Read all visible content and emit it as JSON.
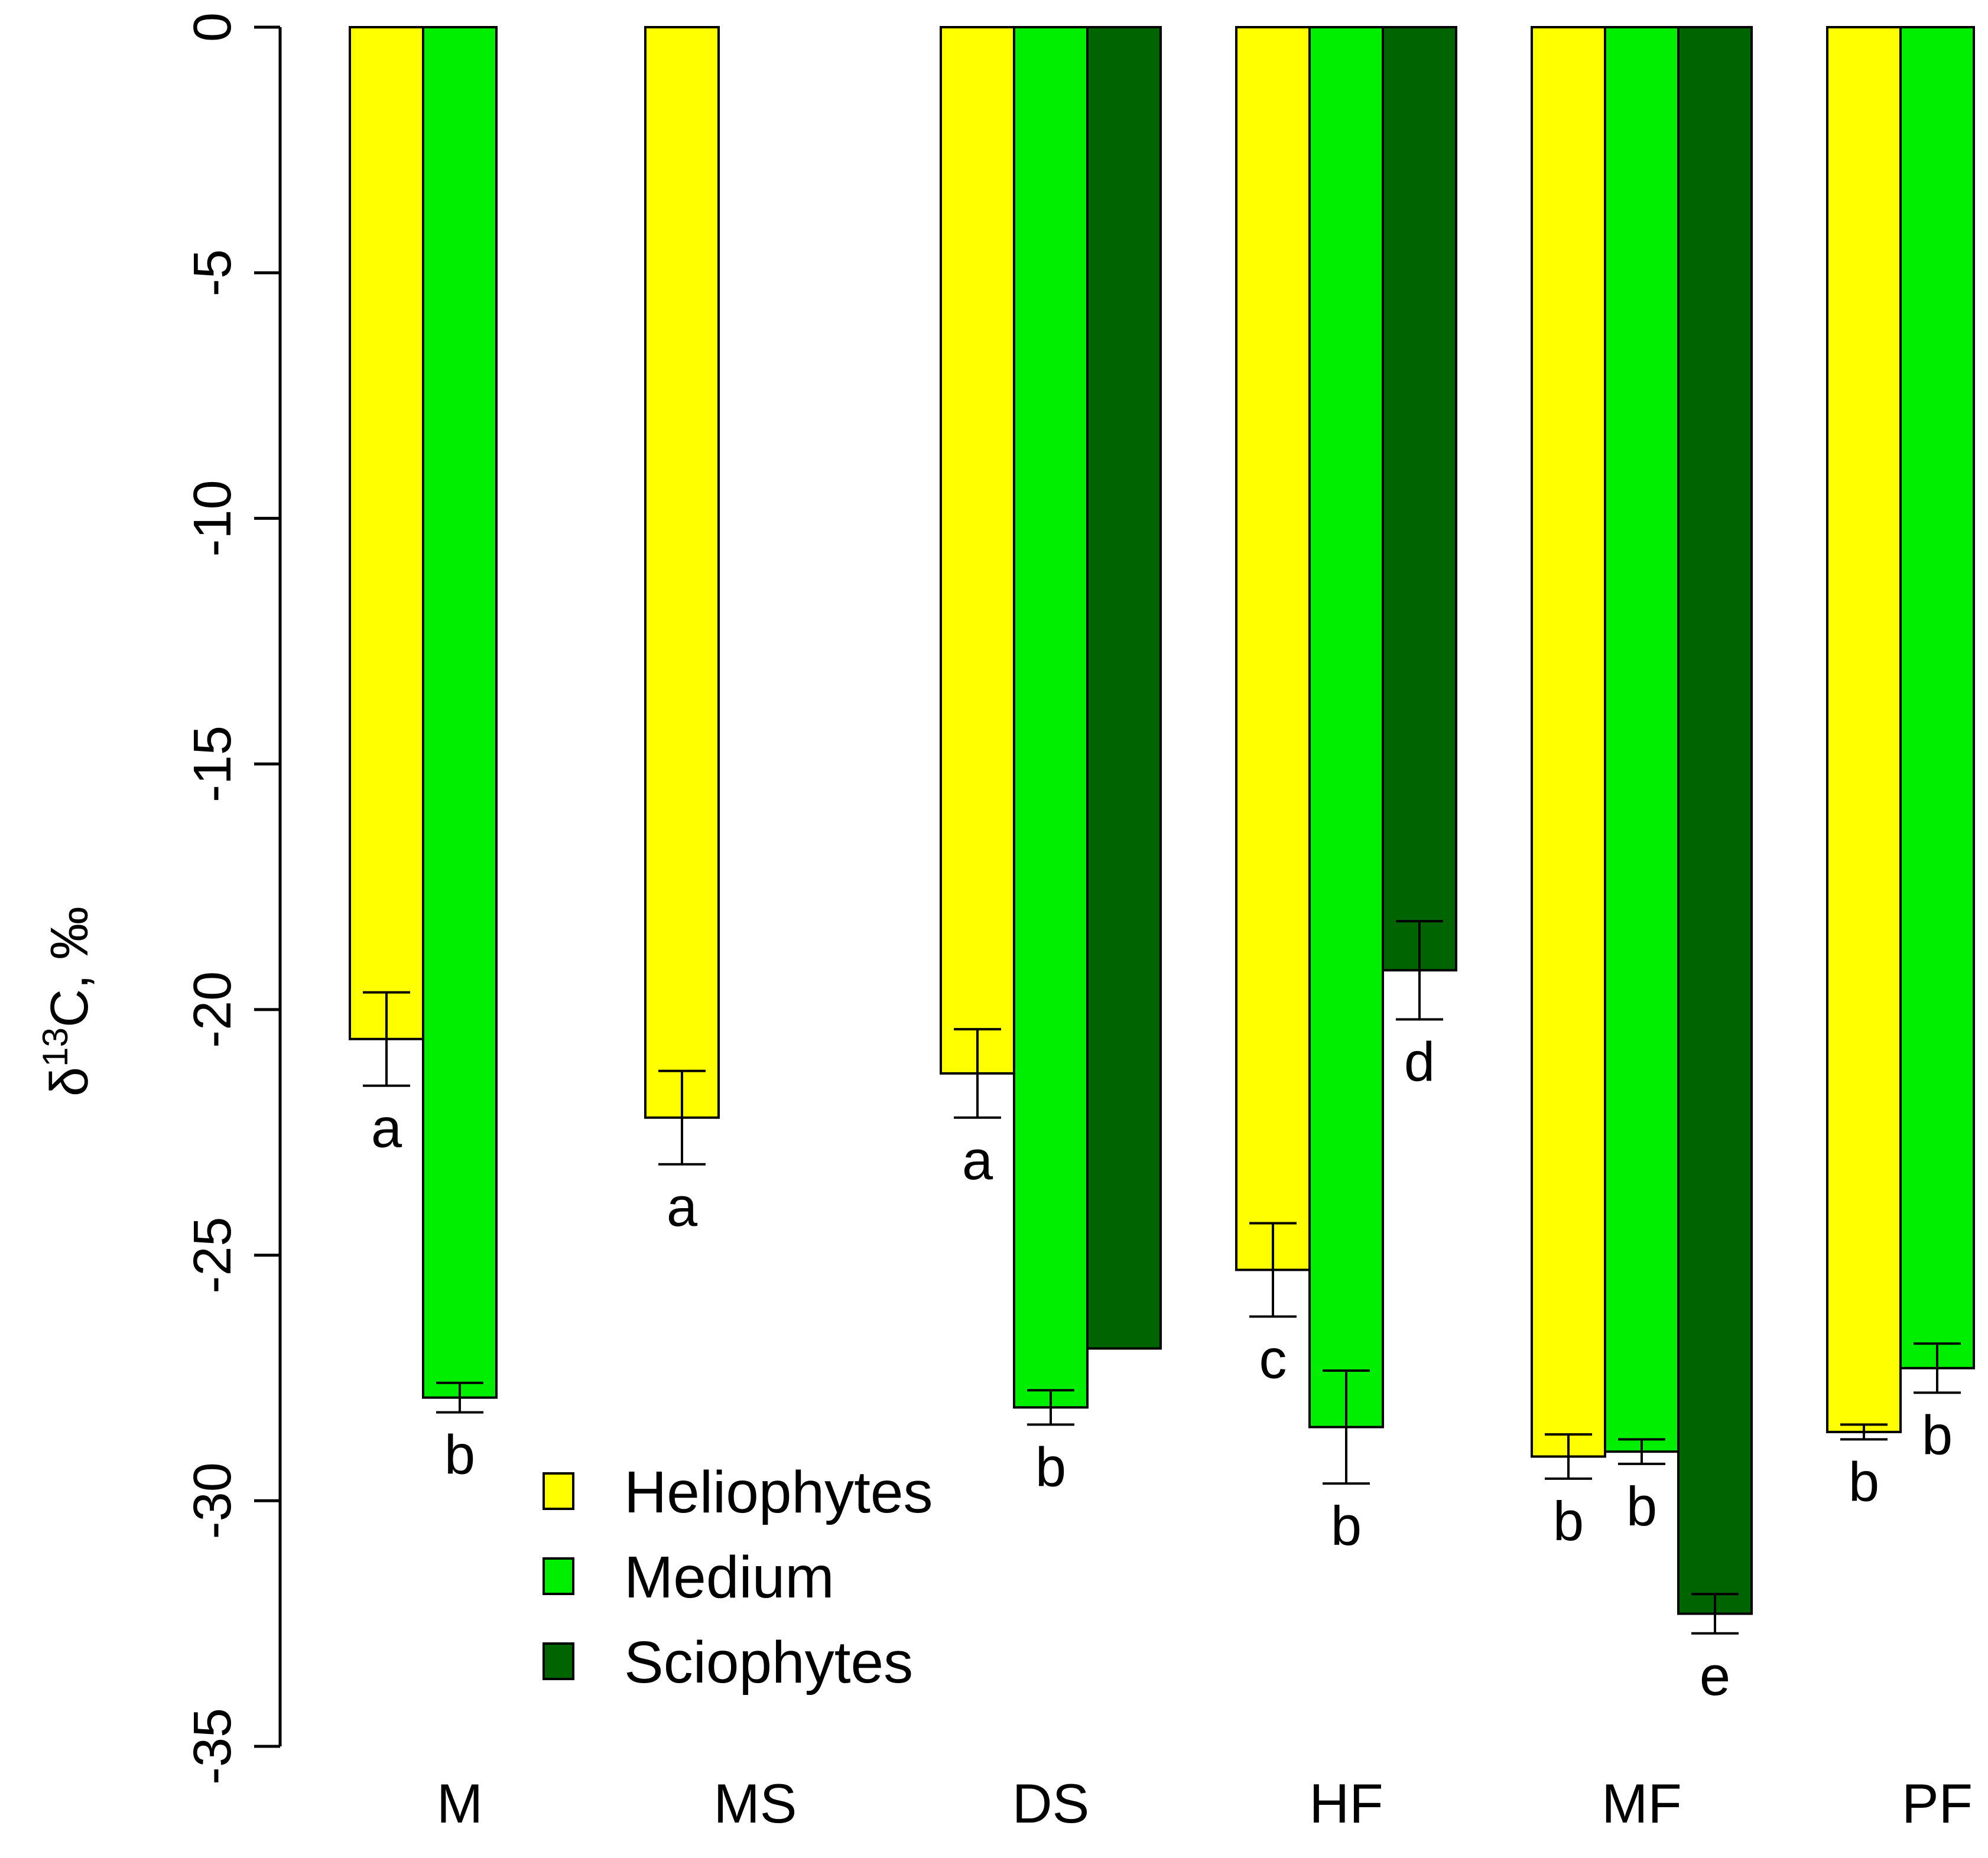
{
  "chart_data": {
    "type": "bar",
    "title": "",
    "xlabel": "",
    "ylabel": {
      "prefix": "δ",
      "superscript": "13",
      "suffix": "C, ‰"
    },
    "ylim": [
      -35,
      0
    ],
    "yticks": [
      "0",
      "-5",
      "-10",
      "-15",
      "-20",
      "-25",
      "-30",
      "-35"
    ],
    "categories": [
      "M",
      "MS",
      "DS",
      "HF",
      "MF",
      "PF"
    ],
    "legend_position": "bottom-left-center",
    "series": [
      {
        "name": "Heliophytes",
        "color": "#ffff00",
        "values": [
          -20.6,
          -22.2,
          -21.3,
          -25.3,
          -29.1,
          -28.6
        ],
        "errors": [
          0.95,
          0.95,
          0.9,
          0.95,
          0.45,
          0.15
        ],
        "labels": [
          "a",
          "a",
          "a",
          "c",
          "b",
          "b"
        ]
      },
      {
        "name": "Medium",
        "color": "#00ee00",
        "values": [
          -27.9,
          null,
          -28.1,
          -28.5,
          -29.0,
          -27.3
        ],
        "errors": [
          0.3,
          null,
          0.35,
          1.15,
          0.25,
          0.5
        ],
        "labels": [
          "b",
          null,
          "b",
          "b",
          "b",
          "b"
        ]
      },
      {
        "name": "Sciophytes",
        "color": "#006400",
        "values": [
          null,
          null,
          -26.9,
          -19.2,
          -32.3,
          null
        ],
        "errors": [
          null,
          null,
          null,
          1.0,
          0.4,
          null
        ],
        "labels": [
          null,
          null,
          null,
          "d",
          "e",
          null
        ]
      }
    ]
  }
}
